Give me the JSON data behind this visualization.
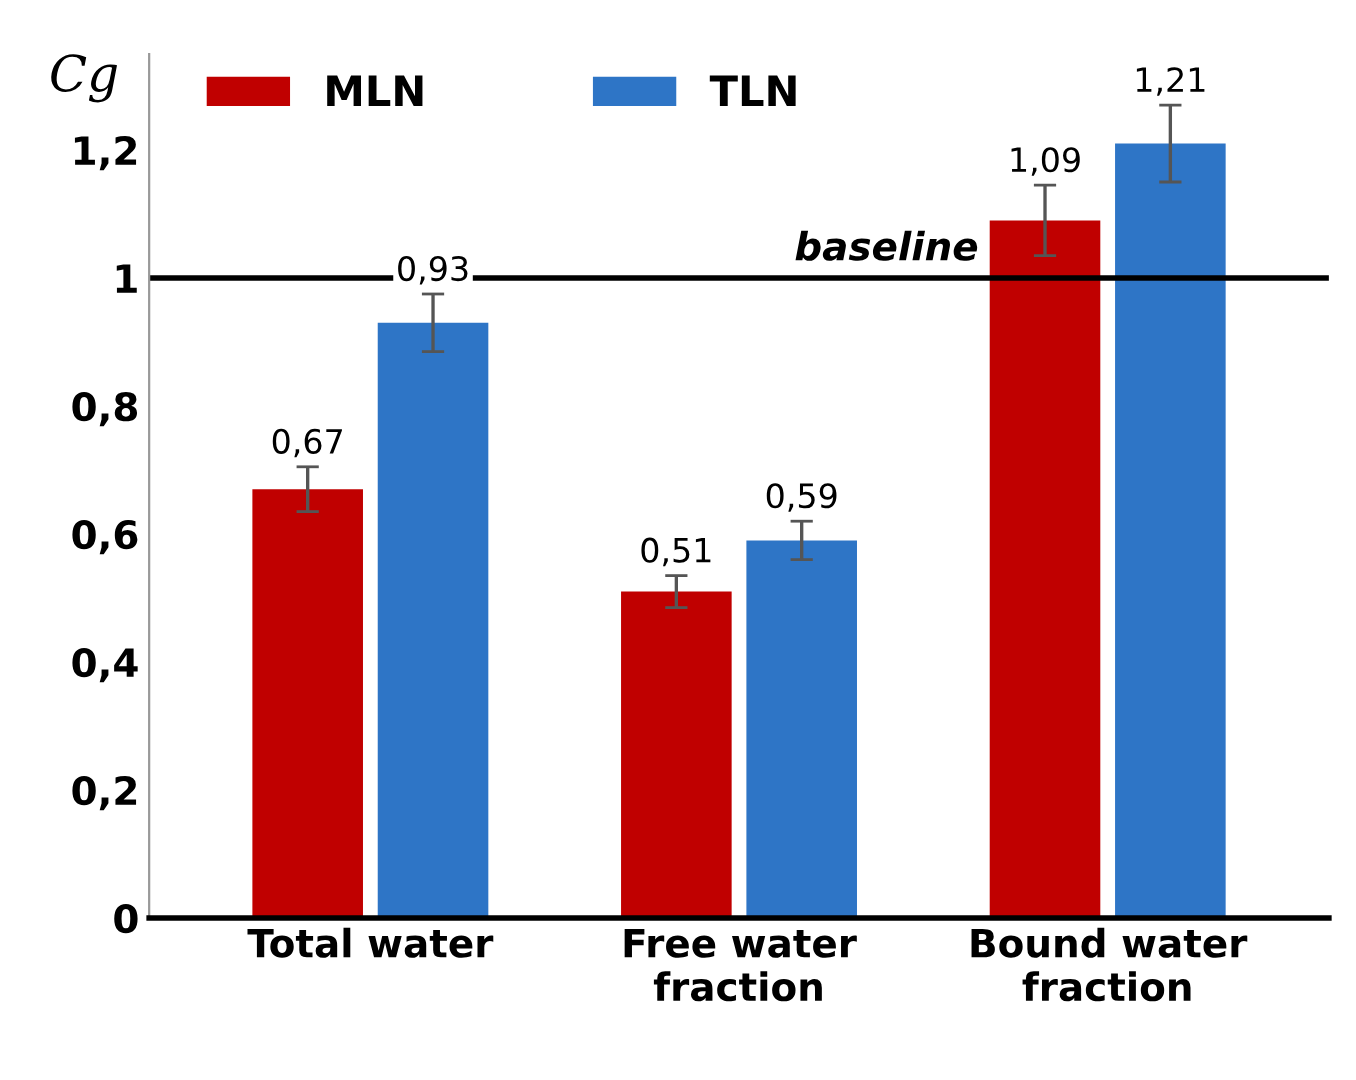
{
  "chart_data": {
    "type": "bar",
    "ylabel": "Cg",
    "categories": [
      "Total water",
      "Free water\nfraction",
      "Bound water\nfraction"
    ],
    "series": [
      {
        "name": "MLN",
        "color": "#c00000",
        "values": [
          0.67,
          0.51,
          1.09
        ],
        "errors": [
          0.035,
          0.025,
          0.055
        ],
        "value_labels": [
          "0,67",
          "0,51",
          "1,09"
        ]
      },
      {
        "name": "TLN",
        "color": "#2e75c6",
        "values": [
          0.93,
          0.59,
          1.21
        ],
        "errors": [
          0.045,
          0.03,
          0.06
        ],
        "value_labels": [
          "0,93",
          "0,59",
          "1,21"
        ]
      }
    ],
    "ylim": [
      0,
      1.35
    ],
    "yticks": [
      0,
      {
        "value": 0.2,
        "label": "0,2"
      },
      {
        "value": 0.4,
        "label": "0,4"
      },
      {
        "value": 0.6,
        "label": "0,6"
      },
      {
        "value": 0.8,
        "label": "0,8"
      },
      1,
      {
        "value": 1.2,
        "label": "1,2"
      }
    ],
    "ref_lines": [
      {
        "axis": "y",
        "value": 1,
        "label": "baseline",
        "color": "#000000",
        "line_style": "solid"
      }
    ],
    "grid": false,
    "legend": "top"
  }
}
